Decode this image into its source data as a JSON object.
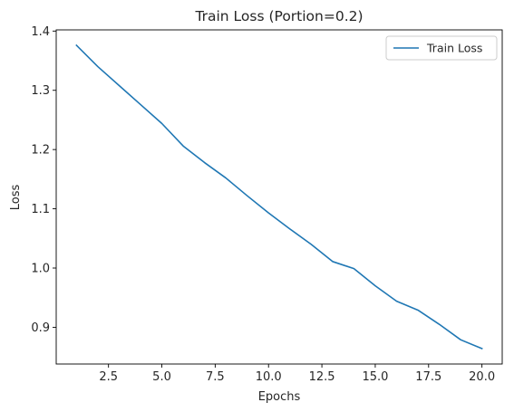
{
  "chart_data": {
    "type": "line",
    "title": "Train Loss (Portion=0.2)",
    "xlabel": "Epochs",
    "ylabel": "Loss",
    "xlim": [
      0.05,
      20.95
    ],
    "ylim": [
      0.838,
      1.402
    ],
    "xticks": [
      2.5,
      5.0,
      7.5,
      10.0,
      12.5,
      15.0,
      17.5,
      20.0
    ],
    "xtick_labels": [
      "2.5",
      "5.0",
      "7.5",
      "10.0",
      "12.5",
      "15.0",
      "17.5",
      "20.0"
    ],
    "yticks": [
      0.9,
      1.0,
      1.1,
      1.2,
      1.3,
      1.4
    ],
    "ytick_labels": [
      "0.9",
      "1.0",
      "1.1",
      "1.2",
      "1.3",
      "1.4"
    ],
    "grid": false,
    "legend_position": "top-right",
    "series": [
      {
        "name": "Train Loss",
        "color": "#1f77b4",
        "x": [
          1,
          2,
          3,
          4,
          5,
          6,
          7,
          8,
          9,
          10,
          11,
          12,
          13,
          14,
          15,
          16,
          17,
          18,
          19,
          20
        ],
        "values": [
          1.376,
          1.34,
          1.308,
          1.276,
          1.244,
          1.206,
          1.178,
          1.152,
          1.122,
          1.093,
          1.066,
          1.04,
          1.011,
          0.999,
          0.97,
          0.944,
          0.929,
          0.905,
          0.879,
          0.864
        ]
      }
    ]
  }
}
